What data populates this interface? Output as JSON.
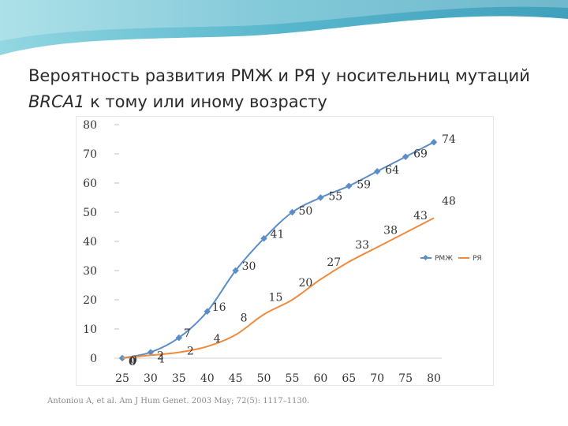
{
  "slide": {
    "title_prefix": "Вероятность развития РМЖ и РЯ у носительниц мутаций ",
    "title_gene": "BRCA1",
    "title_suffix": " к тому или иному возрасту",
    "citation": "Antoniou A, et al. Am J Hum Genet. 2003 May; 72(5): 1117–1130."
  },
  "colors": {
    "rmzh": "#5b8ec7",
    "rya": "#f08a3c",
    "banner": "#4fb3c8"
  },
  "chart_data": {
    "type": "line",
    "x": [
      25,
      30,
      35,
      40,
      45,
      50,
      55,
      60,
      65,
      70,
      75,
      80
    ],
    "ylim": [
      0,
      80
    ],
    "yticks": [
      0,
      10,
      20,
      30,
      40,
      50,
      60,
      70,
      80
    ],
    "xlim": [
      25,
      80
    ],
    "legend_position": "right",
    "series": [
      {
        "name": "РМЖ",
        "values": [
          0,
          2,
          7,
          16,
          30,
          41,
          50,
          55,
          59,
          64,
          69,
          74
        ],
        "labels": [
          "0",
          "2",
          "7",
          "16",
          "30",
          "41",
          "50",
          "55",
          "59",
          "64",
          "69",
          "74"
        ],
        "markers": true
      },
      {
        "name": "РЯ",
        "values": [
          0,
          1,
          2,
          4,
          8,
          15,
          20,
          27,
          33,
          38,
          43,
          48
        ],
        "labels": [
          "0",
          "1",
          "2",
          "4",
          "8",
          "15",
          "20",
          "27",
          "33",
          "38",
          "43",
          "48"
        ],
        "markers": false
      }
    ]
  }
}
